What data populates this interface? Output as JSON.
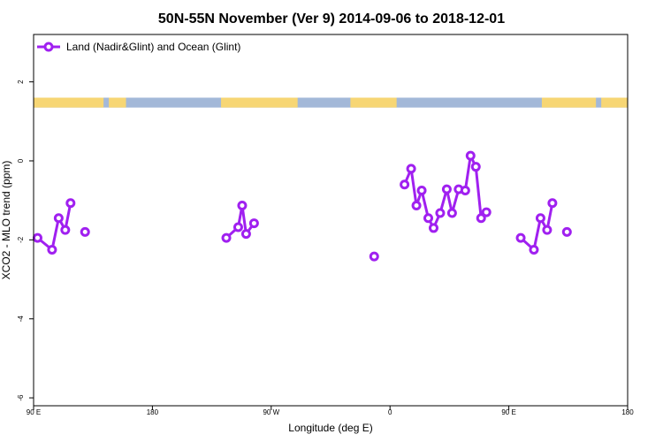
{
  "chart_data": {
    "type": "line",
    "title": "50N-55N November (Ver 9)   2014-09-06 to 2018-12-01",
    "xlabel": "Longitude (deg E)",
    "ylabel": "XCO2 - MLO trend (ppm)",
    "xlim": [
      90,
      540
    ],
    "ylim": [
      -6.2,
      3.2
    ],
    "x_ticks": [
      {
        "value": 90,
        "label": "90 E"
      },
      {
        "value": 180,
        "label": "180"
      },
      {
        "value": 270,
        "label": "90 W"
      },
      {
        "value": 360,
        "label": "0"
      },
      {
        "value": 450,
        "label": "90 E"
      },
      {
        "value": 540,
        "label": "180"
      }
    ],
    "y_ticks": [
      {
        "value": 2,
        "label": "2"
      },
      {
        "value": 0,
        "label": "0"
      },
      {
        "value": -2,
        "label": "-2"
      },
      {
        "value": -4,
        "label": "-4"
      },
      {
        "value": -6,
        "label": "-6"
      }
    ],
    "land_ocean_band": {
      "y_range": [
        1.35,
        1.6
      ],
      "land_color": "#f7d674",
      "ocean_color": "#a3b8d8",
      "land_segments": [
        [
          90,
          143
        ],
        [
          147,
          160
        ],
        [
          232,
          290
        ],
        [
          330,
          365
        ],
        [
          475,
          516
        ],
        [
          520,
          540
        ]
      ]
    },
    "legend": {
      "position": "top-left",
      "label": "Land (Nadir&Glint) and Ocean (Glint)"
    },
    "series": [
      {
        "name": "Land (Nadir&Glint) and Ocean (Glint)",
        "color": "#a020f0",
        "segments": [
          [
            [
              93,
              -1.95
            ],
            [
              104,
              -2.25
            ],
            [
              109,
              -1.45
            ],
            [
              114,
              -1.75
            ],
            [
              118,
              -1.07
            ]
          ],
          [
            [
              129,
              -1.8
            ]
          ],
          [
            [
              236,
              -1.95
            ],
            [
              245,
              -1.68
            ],
            [
              248,
              -1.13
            ],
            [
              251,
              -1.85
            ],
            [
              257,
              -1.58
            ]
          ],
          [
            [
              348,
              -2.42
            ]
          ],
          [
            [
              371,
              -0.6
            ],
            [
              376,
              -0.2
            ],
            [
              380,
              -1.13
            ],
            [
              384,
              -0.75
            ],
            [
              389,
              -1.45
            ],
            [
              393,
              -1.7
            ],
            [
              398,
              -1.32
            ],
            [
              403,
              -0.72
            ],
            [
              407,
              -1.32
            ],
            [
              412,
              -0.72
            ],
            [
              417,
              -0.75
            ],
            [
              421,
              0.13
            ],
            [
              425,
              -0.15
            ],
            [
              429,
              -1.45
            ],
            [
              433,
              -1.3
            ]
          ],
          [
            [
              459,
              -1.95
            ],
            [
              469,
              -2.25
            ],
            [
              474,
              -1.45
            ],
            [
              479,
              -1.75
            ],
            [
              483,
              -1.07
            ]
          ],
          [
            [
              494,
              -1.8
            ]
          ]
        ]
      }
    ],
    "grid": false
  }
}
